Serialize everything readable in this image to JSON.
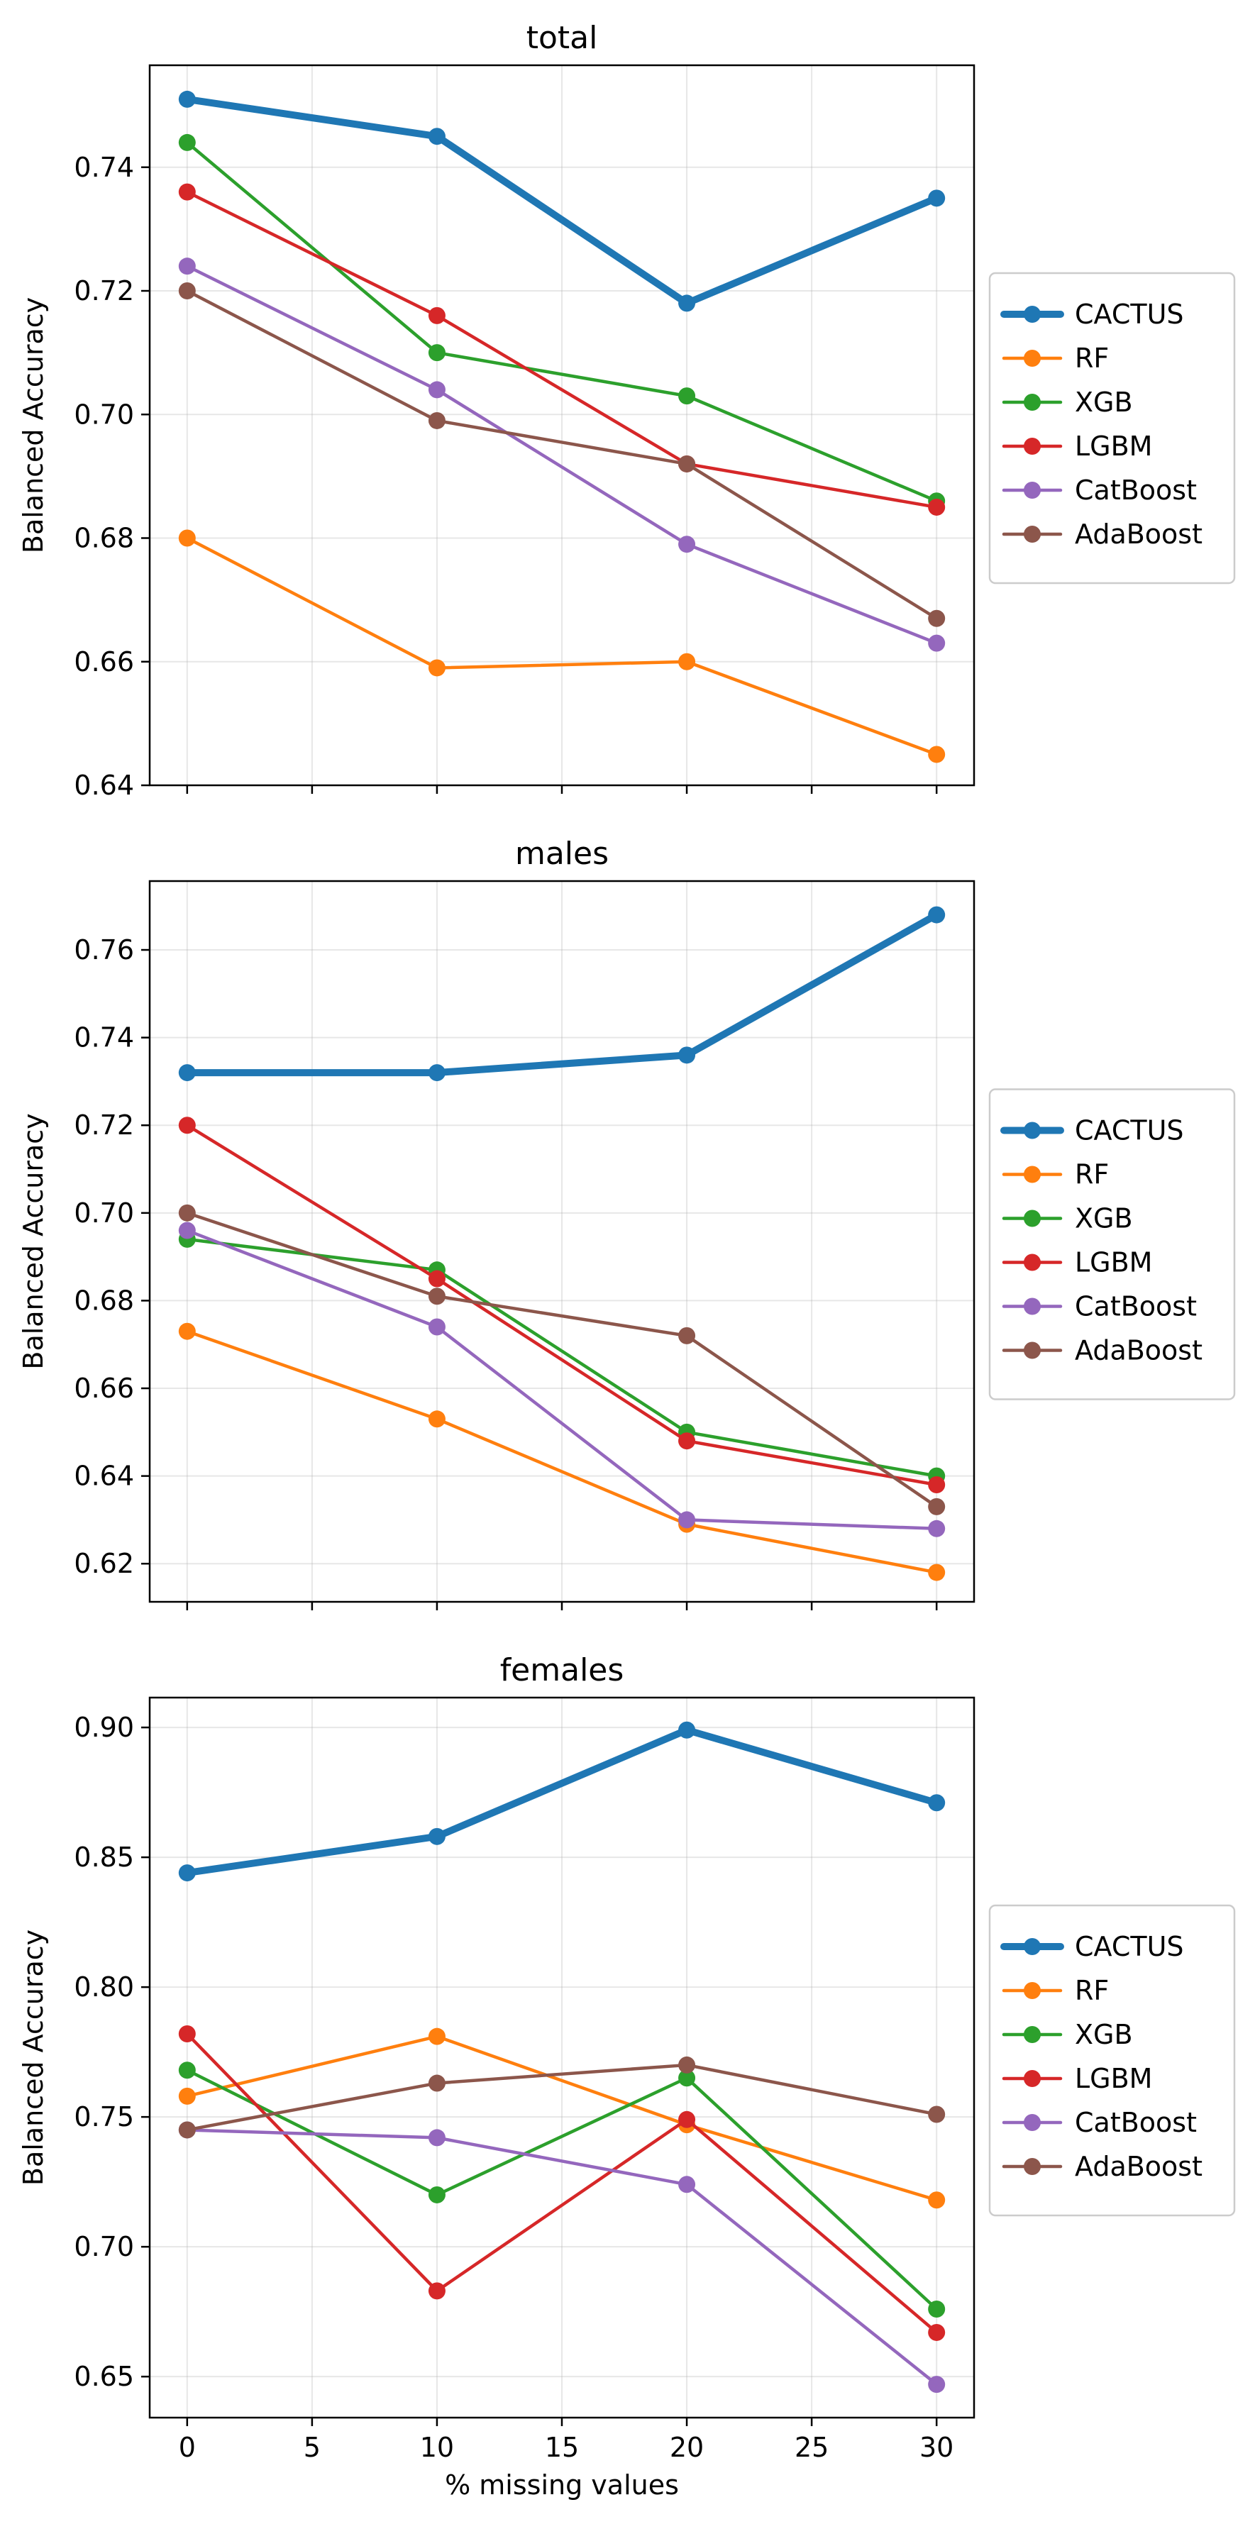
{
  "chart_data": [
    {
      "type": "line",
      "title": "total",
      "xlabel": "",
      "ylabel": "Balanced Accuracy",
      "x": [
        0,
        10,
        20,
        30
      ],
      "xlim": [
        -1.5,
        31.5
      ],
      "ylim": [
        0.64,
        0.7565
      ],
      "xticks": [
        0,
        5,
        10,
        15,
        20,
        25,
        30
      ],
      "yticks": [
        0.64,
        0.66,
        0.68,
        0.7,
        0.72,
        0.74
      ],
      "ytick_labels": [
        "0.64",
        "0.66",
        "0.68",
        "0.70",
        "0.72",
        "0.74"
      ],
      "show_xtick_labels": false,
      "grid": true,
      "legend": "outside-right",
      "series": [
        {
          "name": "CACTUS",
          "color": "#1f77b4",
          "bold": true,
          "values": [
            0.751,
            0.745,
            0.718,
            0.735
          ]
        },
        {
          "name": "RF",
          "color": "#ff7f0e",
          "bold": false,
          "values": [
            0.68,
            0.659,
            0.66,
            0.645
          ]
        },
        {
          "name": "XGB",
          "color": "#2ca02c",
          "bold": false,
          "values": [
            0.744,
            0.71,
            0.703,
            0.686
          ]
        },
        {
          "name": "LGBM",
          "color": "#d62728",
          "bold": false,
          "values": [
            0.736,
            0.716,
            0.692,
            0.685
          ]
        },
        {
          "name": "CatBoost",
          "color": "#9467bd",
          "bold": false,
          "values": [
            0.724,
            0.704,
            0.679,
            0.663
          ]
        },
        {
          "name": "AdaBoost",
          "color": "#8c564b",
          "bold": false,
          "values": [
            0.72,
            0.699,
            0.692,
            0.667
          ]
        }
      ]
    },
    {
      "type": "line",
      "title": "males",
      "xlabel": "",
      "ylabel": "Balanced Accuracy",
      "x": [
        0,
        10,
        20,
        30
      ],
      "xlim": [
        -1.5,
        31.5
      ],
      "ylim": [
        0.6113,
        0.7757
      ],
      "xticks": [
        0,
        5,
        10,
        15,
        20,
        25,
        30
      ],
      "yticks": [
        0.62,
        0.64,
        0.66,
        0.68,
        0.7,
        0.72,
        0.74,
        0.76
      ],
      "ytick_labels": [
        "0.62",
        "0.64",
        "0.66",
        "0.68",
        "0.70",
        "0.72",
        "0.74",
        "0.76"
      ],
      "show_xtick_labels": false,
      "grid": true,
      "legend": "outside-right",
      "series": [
        {
          "name": "CACTUS",
          "color": "#1f77b4",
          "bold": true,
          "values": [
            0.732,
            0.732,
            0.736,
            0.768
          ]
        },
        {
          "name": "RF",
          "color": "#ff7f0e",
          "bold": false,
          "values": [
            0.673,
            0.653,
            0.629,
            0.618
          ]
        },
        {
          "name": "XGB",
          "color": "#2ca02c",
          "bold": false,
          "values": [
            0.694,
            0.687,
            0.65,
            0.64
          ]
        },
        {
          "name": "LGBM",
          "color": "#d62728",
          "bold": false,
          "values": [
            0.72,
            0.685,
            0.648,
            0.638
          ]
        },
        {
          "name": "CatBoost",
          "color": "#9467bd",
          "bold": false,
          "values": [
            0.696,
            0.674,
            0.63,
            0.628
          ]
        },
        {
          "name": "AdaBoost",
          "color": "#8c564b",
          "bold": false,
          "values": [
            0.7,
            0.681,
            0.672,
            0.633
          ]
        }
      ]
    },
    {
      "type": "line",
      "title": "females",
      "xlabel": "% missing values",
      "ylabel": "Balanced Accuracy",
      "x": [
        0,
        10,
        20,
        30
      ],
      "xlim": [
        -1.5,
        31.5
      ],
      "ylim": [
        0.6342,
        0.9115
      ],
      "xticks": [
        0,
        5,
        10,
        15,
        20,
        25,
        30
      ],
      "yticks": [
        0.65,
        0.7,
        0.75,
        0.8,
        0.85,
        0.9
      ],
      "ytick_labels": [
        "0.65",
        "0.70",
        "0.75",
        "0.80",
        "0.85",
        "0.90"
      ],
      "show_xtick_labels": true,
      "xtick_labels": [
        "0",
        "5",
        "10",
        "15",
        "20",
        "25",
        "30"
      ],
      "grid": true,
      "legend": "outside-right",
      "series": [
        {
          "name": "CACTUS",
          "color": "#1f77b4",
          "bold": true,
          "values": [
            0.844,
            0.858,
            0.899,
            0.871
          ]
        },
        {
          "name": "RF",
          "color": "#ff7f0e",
          "bold": false,
          "values": [
            0.758,
            0.781,
            0.747,
            0.718
          ]
        },
        {
          "name": "XGB",
          "color": "#2ca02c",
          "bold": false,
          "values": [
            0.768,
            0.72,
            0.765,
            0.676
          ]
        },
        {
          "name": "LGBM",
          "color": "#d62728",
          "bold": false,
          "values": [
            0.782,
            0.683,
            0.749,
            0.667
          ]
        },
        {
          "name": "CatBoost",
          "color": "#9467bd",
          "bold": false,
          "values": [
            0.745,
            0.742,
            0.724,
            0.647
          ]
        },
        {
          "name": "AdaBoost",
          "color": "#8c564b",
          "bold": false,
          "values": [
            0.745,
            0.763,
            0.77,
            0.751
          ]
        }
      ]
    }
  ]
}
